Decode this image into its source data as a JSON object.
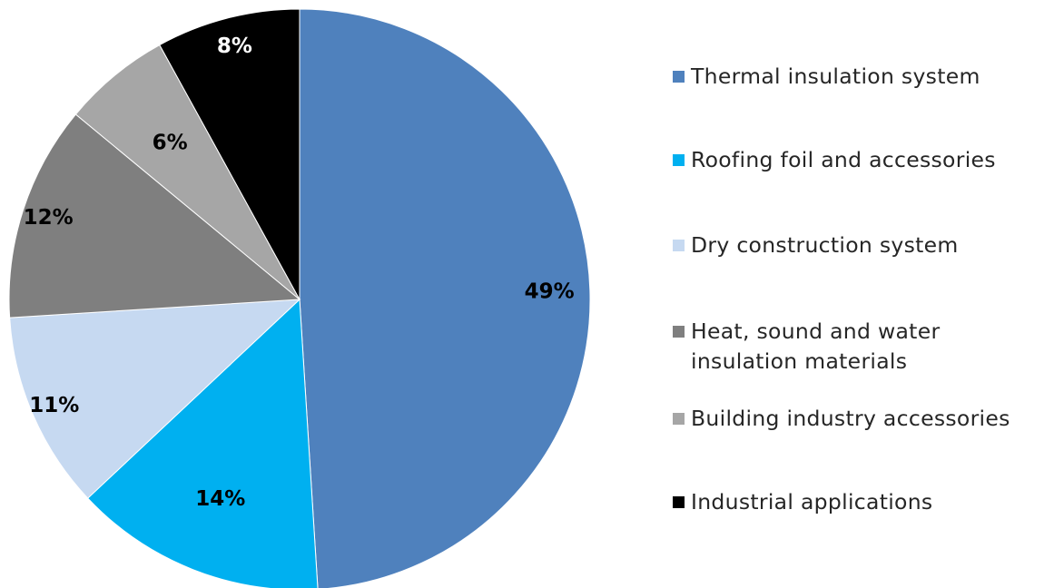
{
  "chart_data": {
    "type": "pie",
    "categories": [
      "Thermal insulation system",
      "Roofing foil and accessories",
      "Dry construction system",
      "Heat, sound and water insulation materials",
      "Building industry accessories",
      "Industrial applications"
    ],
    "values": [
      49,
      14,
      11,
      12,
      6,
      8
    ],
    "data_labels": [
      "49%",
      "14%",
      "11%",
      "12%",
      "6%",
      "8%"
    ],
    "colors": [
      "#4f81bd",
      "#00b0f0",
      "#c6d9f1",
      "#7f7f7f",
      "#a6a6a6",
      "#000000"
    ],
    "label_colors": [
      "#000000",
      "#000000",
      "#000000",
      "#000000",
      "#000000",
      "#ffffff"
    ],
    "legend_position": "right",
    "start_angle": "12 o'clock, clockwise"
  }
}
